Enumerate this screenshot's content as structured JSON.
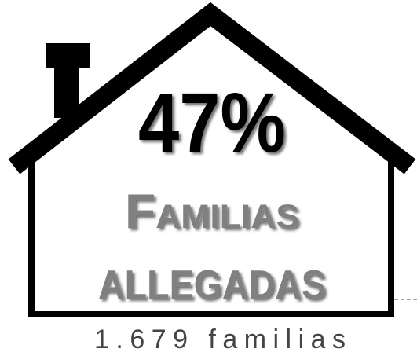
{
  "percentage": "47%",
  "label_line1": "Familias",
  "label_line2": "ALLEGADAS",
  "count": "1.679 familias"
}
